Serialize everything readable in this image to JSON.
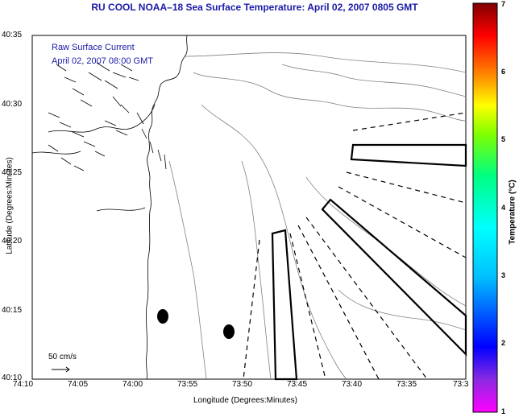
{
  "map": {
    "title": "RU COOL  NOAA–18  Sea Surface Temperature:  April 02, 2007 0805 GMT",
    "legend_line1": "Raw Surface Current",
    "legend_line2": "April 02, 2007 08:00 GMT",
    "scale_label": "50 cm/s",
    "xlabel": "Longitude (Degrees:Minutes)",
    "ylabel": "Latitude (Degrees:Minutes)",
    "x_ticks": [
      "74:10",
      "74:05",
      "74:00",
      "73:55",
      "73:50",
      "73:45",
      "73:40",
      "73:35",
      "73:3"
    ],
    "y_ticks": [
      "40:35",
      "40:30",
      "40:25",
      "40:20",
      "40:15",
      "40:10"
    ]
  },
  "colorbar": {
    "label": "Temperature (°C)",
    "ticks": [
      "7",
      "6",
      "5",
      "4",
      "3",
      "2",
      "1"
    ],
    "colors": [
      "#ff00ff",
      "#8a2be2",
      "#0000ff",
      "#00bfff",
      "#00ffff",
      "#00ff80",
      "#80ff00",
      "#ffff00",
      "#ff8000",
      "#ff0000",
      "#800000"
    ]
  },
  "features": {
    "land_color": "#ffffff",
    "contour_color": "#808080",
    "vector_color": "#000000"
  }
}
